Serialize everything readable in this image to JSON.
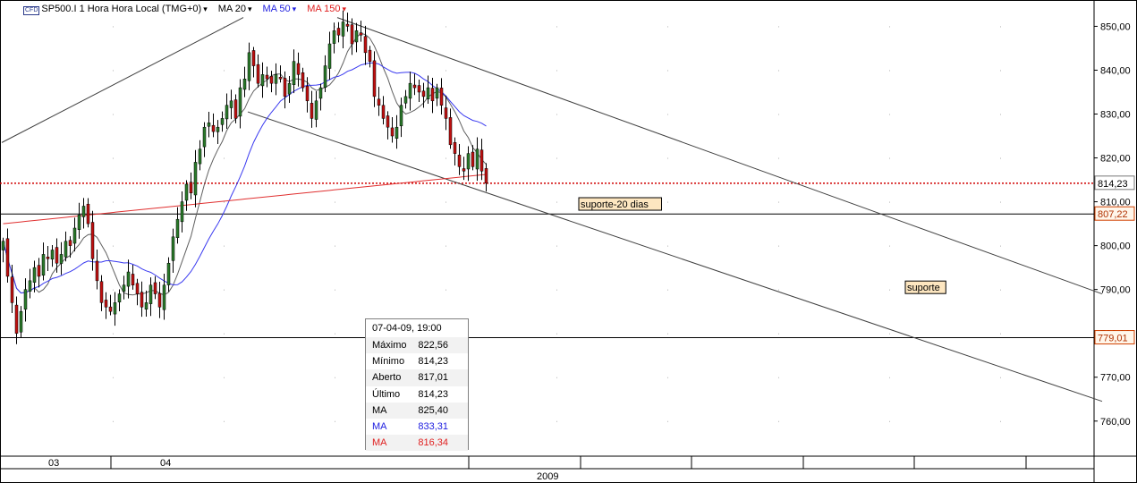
{
  "header": {
    "symbol_badge": "CFD",
    "title": "SP500.I 1 Hora Hora Local (TMG+0)",
    "ma_labels": [
      {
        "label": "MA 20",
        "color": "#000000"
      },
      {
        "label": "MA 50",
        "color": "#2020e0"
      },
      {
        "label": "MA 150",
        "color": "#e02020"
      }
    ]
  },
  "colors": {
    "up_candle": "#2a7a2a",
    "down_candle": "#c01010",
    "ma20": "#606060",
    "ma50": "#3a3af0",
    "ma150": "#e03030",
    "last_price_line": "#d00000"
  },
  "chart_data": {
    "type": "candlestick",
    "y_axis_ticks": [
      "760,00",
      "770,00",
      "780,00",
      "790,00",
      "800,00",
      "810,00",
      "820,00",
      "830,00",
      "840,00",
      "850,00"
    ],
    "ylim": [
      752,
      856
    ],
    "x_labels": [
      {
        "label": "03",
        "x": 0
      },
      {
        "label": "04",
        "x": 25
      }
    ],
    "x_year": "2009",
    "price_labels": [
      {
        "value": "814,23",
        "kind": "last"
      },
      {
        "value": "807,22",
        "kind": "level"
      },
      {
        "value": "779,01",
        "kind": "level"
      }
    ],
    "horizontal_levels": [
      {
        "value": 814.23,
        "style": "dotted"
      },
      {
        "value": 807.22,
        "style": "solid"
      },
      {
        "value": 779.01,
        "style": "solid"
      }
    ],
    "annotations": [
      {
        "text": "suporte-20 dias",
        "x": 140,
        "y": 809.5
      },
      {
        "text": "suporte",
        "x": 213,
        "y": 790.5
      }
    ],
    "trendlines": [
      {
        "from": [
          0,
          823.5
        ],
        "to": [
          54,
          852
        ]
      },
      {
        "from": [
          75,
          852
        ],
        "to": [
          246,
          789
        ]
      },
      {
        "from": [
          55,
          830.5
        ],
        "to": [
          246,
          764.5
        ]
      }
    ],
    "closes": [
      801,
      793,
      787,
      780,
      785,
      790,
      792,
      795,
      793,
      798,
      797,
      799,
      796,
      798,
      801,
      800,
      804,
      807,
      809,
      805,
      797,
      792,
      787,
      786,
      785,
      787,
      789,
      791,
      794,
      791,
      789,
      786,
      787,
      791,
      789,
      786,
      791,
      796,
      802,
      806,
      810,
      814,
      812,
      819,
      822,
      827,
      828,
      826,
      827,
      829,
      832,
      833,
      829,
      836,
      838,
      844,
      841,
      837,
      839,
      838,
      837,
      839,
      838,
      834,
      837,
      842,
      839,
      836,
      833,
      829,
      833,
      836,
      841,
      846,
      849,
      848,
      851,
      850,
      846,
      849,
      848,
      844,
      842,
      834,
      832,
      829,
      827,
      825,
      827,
      832,
      834,
      837,
      836,
      835,
      834,
      836,
      833,
      836,
      832,
      829,
      823,
      821,
      818,
      817,
      821,
      818,
      822,
      817,
      814.23
    ],
    "tooltip": {
      "datetime": "07-04-09, 19:00",
      "rows": [
        {
          "key": "Máximo",
          "value": "822,56",
          "color": "#000000"
        },
        {
          "key": "Mínimo",
          "value": "814,23",
          "color": "#000000"
        },
        {
          "key": "Aberto",
          "value": "817,01",
          "color": "#000000"
        },
        {
          "key": "Último",
          "value": "814,23",
          "color": "#000000"
        },
        {
          "key": "MA",
          "value": "825,40",
          "color": "#000000"
        },
        {
          "key": "MA",
          "value": "833,31",
          "color": "#2020e0"
        },
        {
          "key": "MA",
          "value": "816,34",
          "color": "#e02020"
        }
      ]
    }
  }
}
